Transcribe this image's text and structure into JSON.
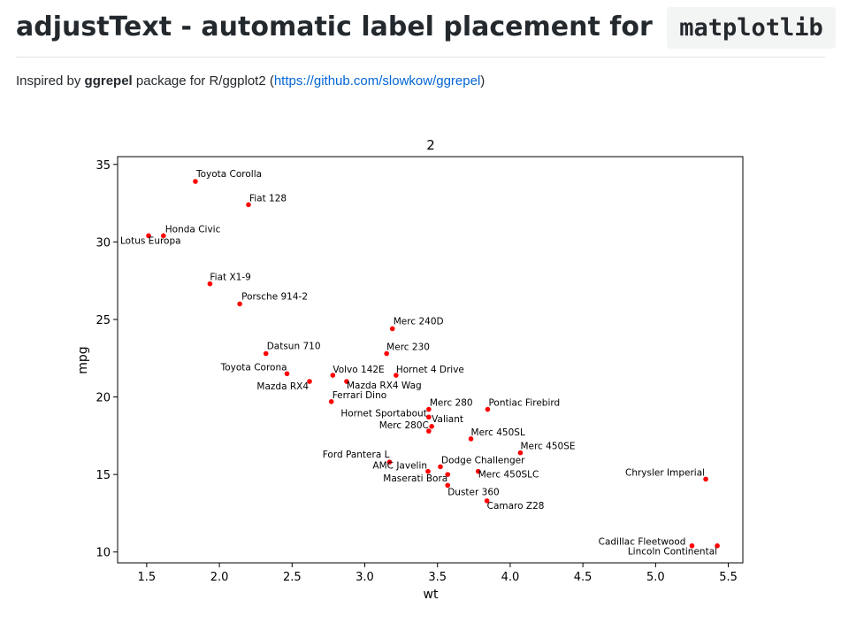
{
  "heading": {
    "title_text": "adjustText - automatic label placement for",
    "title_code": "matplotlib"
  },
  "intro": {
    "prefix": "Inspired by ",
    "bold": "ggrepel",
    "middle": " package for R/ggplot2 (",
    "link_text": "https://github.com/slowkow/ggrepel",
    "suffix": ")"
  },
  "colors": {
    "marker": "#ff0000",
    "link": "#0366d6"
  },
  "chart_data": {
    "type": "scatter",
    "title": "2",
    "xlabel": "wt",
    "ylabel": "mpg",
    "xlim": [
      1.3,
      5.6
    ],
    "ylim": [
      9.3,
      35.5
    ],
    "xticks": [
      "1.5",
      "2.0",
      "2.5",
      "3.0",
      "3.5",
      "4.0",
      "4.5",
      "5.0",
      "5.5"
    ],
    "yticks": [
      "10",
      "15",
      "20",
      "25",
      "30",
      "35"
    ],
    "grid": false,
    "points": [
      {
        "label": "Toyota Corolla",
        "x": 1.835,
        "y": 33.9
      },
      {
        "label": "Fiat 128",
        "x": 2.2,
        "y": 32.4
      },
      {
        "label": "Honda Civic",
        "x": 1.615,
        "y": 30.4
      },
      {
        "label": "Lotus Europa",
        "x": 1.513,
        "y": 30.4
      },
      {
        "label": "Fiat X1-9",
        "x": 1.935,
        "y": 27.3
      },
      {
        "label": "Porsche 914-2",
        "x": 2.14,
        "y": 26.0
      },
      {
        "label": "Merc 240D",
        "x": 3.19,
        "y": 24.4
      },
      {
        "label": "Datsun 710",
        "x": 2.32,
        "y": 22.8
      },
      {
        "label": "Merc 230",
        "x": 3.15,
        "y": 22.8
      },
      {
        "label": "Toyota Corona",
        "x": 2.465,
        "y": 21.5
      },
      {
        "label": "Volvo 142E",
        "x": 2.78,
        "y": 21.4
      },
      {
        "label": "Hornet 4 Drive",
        "x": 3.215,
        "y": 21.4
      },
      {
        "label": "Mazda RX4",
        "x": 2.62,
        "y": 21.0
      },
      {
        "label": "Mazda RX4 Wag",
        "x": 2.875,
        "y": 21.0
      },
      {
        "label": "Ferrari Dino",
        "x": 2.77,
        "y": 19.7
      },
      {
        "label": "Merc 280",
        "x": 3.44,
        "y": 19.2
      },
      {
        "label": "Pontiac Firebird",
        "x": 3.845,
        "y": 19.2
      },
      {
        "label": "Hornet Sportabout",
        "x": 3.44,
        "y": 18.7
      },
      {
        "label": "Valiant",
        "x": 3.46,
        "y": 18.1
      },
      {
        "label": "Merc 280C",
        "x": 3.44,
        "y": 17.8
      },
      {
        "label": "Merc 450SL",
        "x": 3.73,
        "y": 17.3
      },
      {
        "label": "Merc 450SE",
        "x": 4.07,
        "y": 16.4
      },
      {
        "label": "Ford Pantera L",
        "x": 3.17,
        "y": 15.8
      },
      {
        "label": "Dodge Challenger",
        "x": 3.52,
        "y": 15.5
      },
      {
        "label": "AMC Javelin",
        "x": 3.435,
        "y": 15.2
      },
      {
        "label": "Merc 450SLC",
        "x": 3.78,
        "y": 15.2
      },
      {
        "label": "Maserati Bora",
        "x": 3.57,
        "y": 15.0
      },
      {
        "label": "Chrysler Imperial",
        "x": 5.345,
        "y": 14.7
      },
      {
        "label": "Duster 360",
        "x": 3.57,
        "y": 14.3
      },
      {
        "label": "Camaro Z28",
        "x": 3.84,
        "y": 13.3
      },
      {
        "label": "Cadillac Fleetwood",
        "x": 5.25,
        "y": 10.4
      },
      {
        "label": "Lincoln Continental",
        "x": 5.424,
        "y": 10.4
      }
    ]
  }
}
